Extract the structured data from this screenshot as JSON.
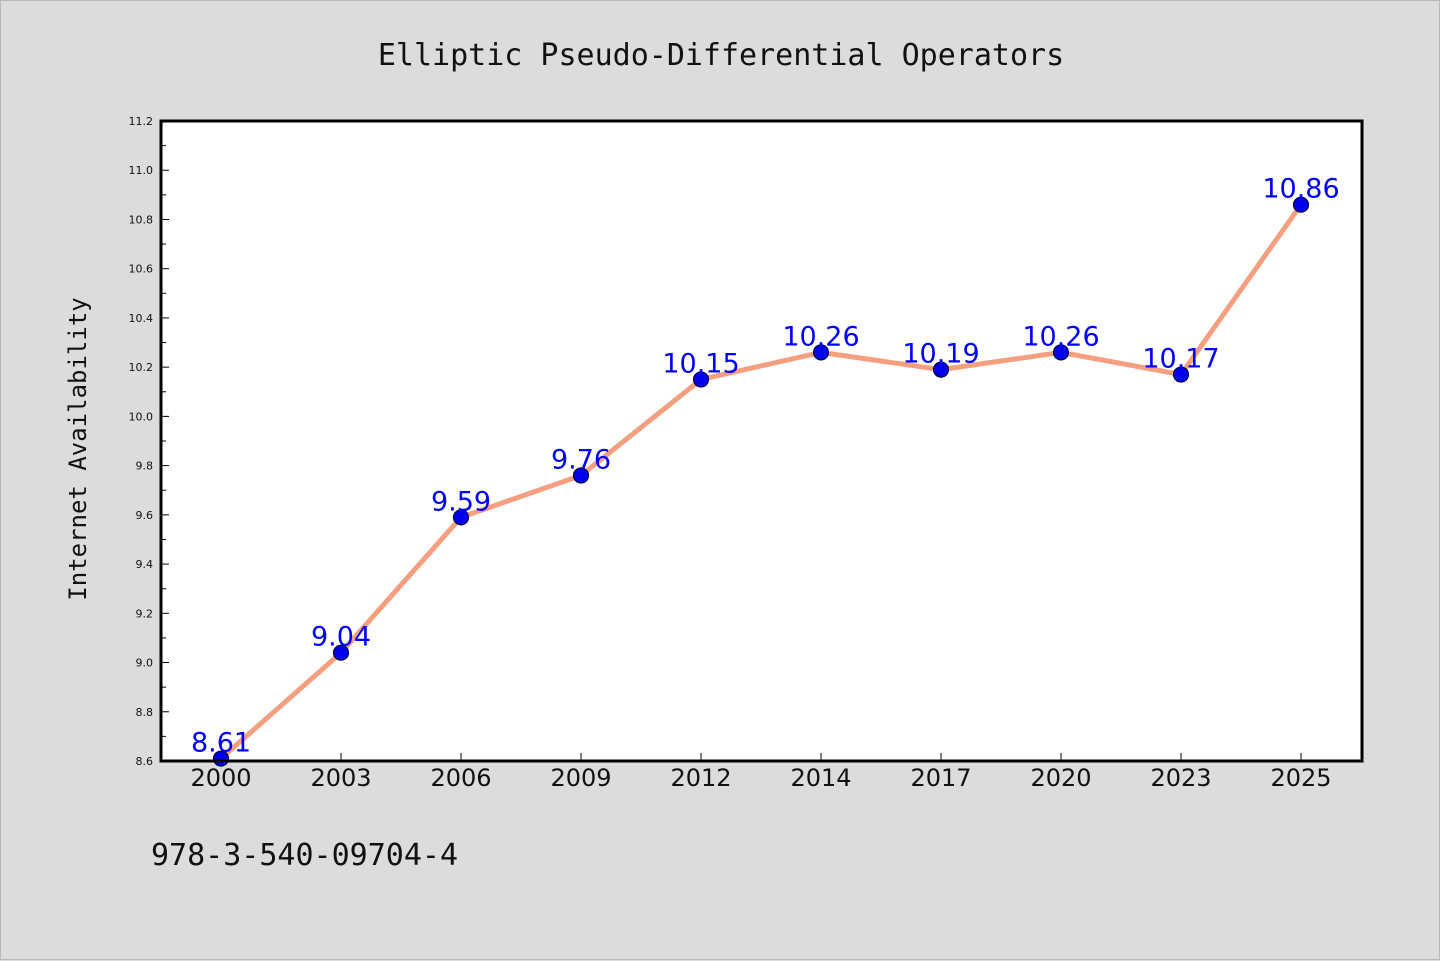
{
  "chart_data": {
    "type": "line",
    "title": "Elliptic Pseudo-Differential Operators",
    "xlabel": "",
    "ylabel": "Internet Availability",
    "categories": [
      "2000",
      "2003",
      "2006",
      "2009",
      "2012",
      "2014",
      "2017",
      "2020",
      "2023",
      "2025"
    ],
    "series": [
      {
        "values": [
          8.61,
          9.04,
          9.59,
          9.76,
          10.15,
          10.26,
          10.19,
          10.26,
          10.17,
          10.86
        ]
      }
    ],
    "data_labels": [
      "8.61",
      "9.04",
      "9.59",
      "9.76",
      "10.15",
      "10.26",
      "10.19",
      "10.26",
      "10.17",
      "10.86"
    ],
    "ylim": [
      8.6,
      11.2
    ],
    "yticks": [
      "8.6",
      "8.8",
      "9.0",
      "9.2",
      "9.4",
      "9.6",
      "9.8",
      "10.0",
      "10.2",
      "10.4",
      "10.6",
      "10.8",
      "11.0",
      "11.2"
    ],
    "ytick_values": [
      8.6,
      8.8,
      9.0,
      9.2,
      9.4,
      9.6,
      9.8,
      10.0,
      10.2,
      10.4,
      10.6,
      10.8,
      11.0,
      11.2
    ],
    "grid": false,
    "legend": "none",
    "colors": {
      "line": "#f4a080",
      "marker": "#0000ee",
      "marker_edge": "#000033",
      "data_label": "#0000ff",
      "background": "#dcdcdc",
      "plot_background": "#ffffff"
    }
  },
  "footer": {
    "isbn": "978-3-540-09704-4"
  }
}
